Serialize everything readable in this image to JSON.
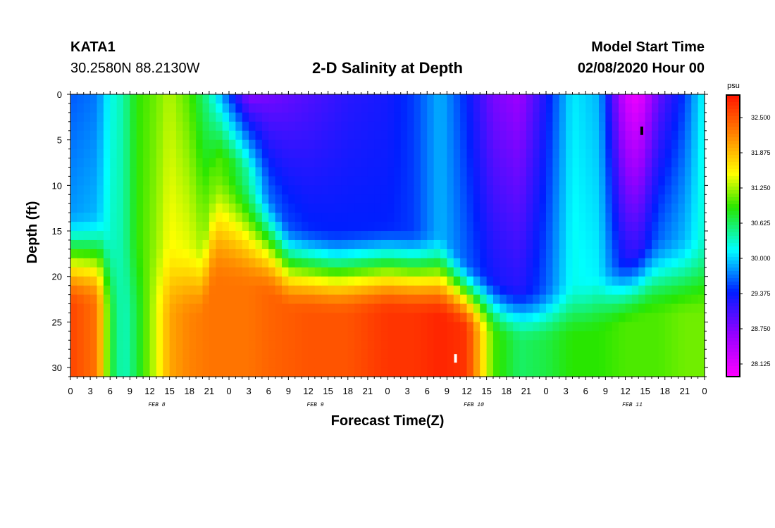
{
  "header": {
    "station": "KATA1",
    "coords": "30.2580N 88.2130W",
    "title": "2-D Salinity at Depth",
    "model_start_label": "Model Start Time",
    "model_start_value": "02/08/2020 Hour 00"
  },
  "chart_data": {
    "type": "heatmap",
    "title": "2-D Salinity at Depth",
    "xlabel": "Forecast Time(Z)",
    "ylabel": "Depth (ft)",
    "xlim": [
      0,
      96
    ],
    "ylim": [
      31,
      0
    ],
    "x_tick_hours": [
      0,
      3,
      6,
      9,
      12,
      15,
      18,
      21,
      24,
      27,
      30,
      33,
      36,
      39,
      42,
      45,
      48,
      51,
      54,
      57,
      60,
      63,
      66,
      69,
      72,
      75,
      78,
      81,
      84,
      87,
      90,
      93,
      96
    ],
    "x_tick_labels": [
      "0",
      "3",
      "6",
      "9",
      "12",
      "15",
      "18",
      "21",
      "0",
      "3",
      "6",
      "9",
      "12",
      "15",
      "18",
      "21",
      "0",
      "3",
      "6",
      "9",
      "12",
      "15",
      "18",
      "21",
      "0",
      "3",
      "6",
      "9",
      "12",
      "15",
      "18",
      "21",
      "0"
    ],
    "date_labels": [
      {
        "hour": 12,
        "text": "FEB 8"
      },
      {
        "hour": 36,
        "text": "FEB 9"
      },
      {
        "hour": 60,
        "text": "FEB 10"
      },
      {
        "hour": 84,
        "text": "FEB 11"
      }
    ],
    "y_ticks": [
      0,
      5,
      10,
      15,
      20,
      25,
      30
    ],
    "colorbar": {
      "unit": "psu",
      "min": 27.9,
      "max": 32.9,
      "tick_values": [
        32.5,
        31.875,
        31.25,
        30.625,
        30.0,
        29.375,
        28.75,
        28.125
      ],
      "tick_labels": [
        "32.500",
        "31.875",
        "31.250",
        "30.625",
        "30.000",
        "29.375",
        "28.750",
        "28.125"
      ]
    },
    "halocline_depth_ft": [
      [
        0,
        14.5
      ],
      [
        5,
        14.5
      ],
      [
        6,
        17
      ],
      [
        20,
        17.5
      ],
      [
        22,
        9
      ],
      [
        26,
        10
      ],
      [
        30,
        12
      ],
      [
        33,
        15.5
      ],
      [
        40,
        16.5
      ],
      [
        48,
        16
      ],
      [
        56,
        17
      ],
      [
        60,
        20
      ],
      [
        66,
        22.5
      ],
      [
        70,
        23
      ],
      [
        78,
        22
      ],
      [
        88,
        17
      ],
      [
        96,
        17
      ]
    ],
    "columns": [
      {
        "hour": 0,
        "top": 29.6,
        "mid": 29.8,
        "bottom": 32.6
      },
      {
        "hour": 4,
        "top": 29.7,
        "mid": 29.9,
        "bottom": 32.3
      },
      {
        "hour": 6,
        "top": 30.2,
        "mid": 30.3,
        "bottom": 30.8
      },
      {
        "hour": 8,
        "top": 30.4,
        "mid": 30.4,
        "bottom": 30.3
      },
      {
        "hour": 10,
        "top": 30.9,
        "mid": 30.9,
        "bottom": 30.7
      },
      {
        "hour": 13,
        "top": 31.1,
        "mid": 31.2,
        "bottom": 31.4
      },
      {
        "hour": 15,
        "top": 31.3,
        "mid": 31.5,
        "bottom": 32.0
      },
      {
        "hour": 18,
        "top": 31.0,
        "mid": 31.4,
        "bottom": 32.2
      },
      {
        "hour": 21,
        "top": 30.4,
        "mid": 31.1,
        "bottom": 32.3
      },
      {
        "hour": 24,
        "top": 29.5,
        "mid": 30.9,
        "bottom": 32.3
      },
      {
        "hour": 27,
        "top": 28.7,
        "mid": 30.4,
        "bottom": 32.3
      },
      {
        "hour": 30,
        "top": 28.8,
        "mid": 29.6,
        "bottom": 32.4
      },
      {
        "hour": 36,
        "top": 29.0,
        "mid": 29.4,
        "bottom": 32.5
      },
      {
        "hour": 42,
        "top": 29.2,
        "mid": 29.4,
        "bottom": 32.5
      },
      {
        "hour": 48,
        "top": 29.3,
        "mid": 29.4,
        "bottom": 32.7
      },
      {
        "hour": 52,
        "top": 29.5,
        "mid": 29.5,
        "bottom": 32.7
      },
      {
        "hour": 56,
        "top": 29.9,
        "mid": 29.9,
        "bottom": 32.8
      },
      {
        "hour": 60,
        "top": 29.4,
        "mid": 29.6,
        "bottom": 32.7
      },
      {
        "hour": 64,
        "top": 28.8,
        "mid": 29.3,
        "bottom": 31.0
      },
      {
        "hour": 68,
        "top": 28.6,
        "mid": 29.2,
        "bottom": 30.6
      },
      {
        "hour": 72,
        "top": 29.3,
        "mid": 29.6,
        "bottom": 30.7
      },
      {
        "hour": 76,
        "top": 30.1,
        "mid": 30.2,
        "bottom": 30.9
      },
      {
        "hour": 80,
        "top": 29.9,
        "mid": 30.1,
        "bottom": 30.9
      },
      {
        "hour": 84,
        "top": 28.2,
        "mid": 29.2,
        "bottom": 31.0
      },
      {
        "hour": 86,
        "top": 28.0,
        "mid": 29.1,
        "bottom": 31.0
      },
      {
        "hour": 89,
        "top": 28.9,
        "mid": 29.6,
        "bottom": 31.0
      },
      {
        "hour": 93,
        "top": 29.5,
        "mid": 29.9,
        "bottom": 31.1
      },
      {
        "hour": 96,
        "top": 30.2,
        "mid": 30.3,
        "bottom": 31.1
      }
    ],
    "markers": [
      {
        "hour": 86.5,
        "depth_ft": 4,
        "color": "#000000",
        "meaning": "min"
      },
      {
        "hour": 58.3,
        "depth_ft": 29,
        "color": "#ffffff",
        "meaning": "max"
      }
    ]
  }
}
